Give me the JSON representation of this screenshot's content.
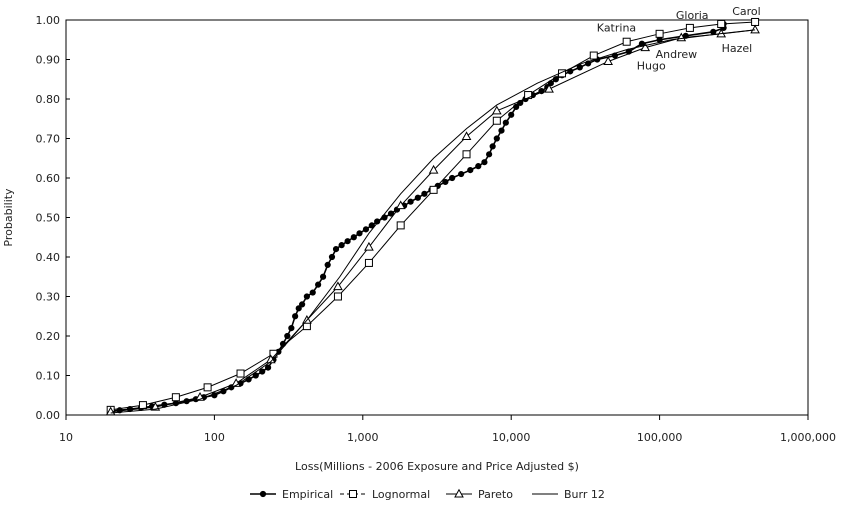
{
  "chart_data": {
    "type": "line",
    "title": "",
    "xlabel": "Loss(Millions - 2006 Exposure and Price Adjusted $)",
    "ylabel": "Probability",
    "x_scale": "log",
    "xlim": [
      10,
      1000000
    ],
    "ylim": [
      0,
      1
    ],
    "x_ticks": [
      10,
      100,
      1000,
      10000,
      100000,
      1000000
    ],
    "x_tick_labels": [
      "10",
      "100",
      "1,000",
      "10,000",
      "100,000",
      "1,000,000"
    ],
    "y_ticks": [
      0,
      0.1,
      0.2,
      0.3,
      0.4,
      0.5,
      0.6,
      0.7,
      0.8,
      0.9,
      1.0
    ],
    "y_tick_labels": [
      "0.00",
      "0.10",
      "0.20",
      "0.30",
      "0.40",
      "0.50",
      "0.60",
      "0.70",
      "0.80",
      "0.90",
      "1.00"
    ],
    "grid": false,
    "legend_position": "bottom",
    "series": [
      {
        "name": "Empirical",
        "marker": "filled-circle",
        "points": [
          [
            20,
            0.01
          ],
          [
            23,
            0.012
          ],
          [
            27,
            0.015
          ],
          [
            32,
            0.018
          ],
          [
            38,
            0.022
          ],
          [
            46,
            0.026
          ],
          [
            55,
            0.03
          ],
          [
            65,
            0.035
          ],
          [
            75,
            0.04
          ],
          [
            85,
            0.045
          ],
          [
            100,
            0.05
          ],
          [
            115,
            0.06
          ],
          [
            130,
            0.07
          ],
          [
            150,
            0.08
          ],
          [
            170,
            0.09
          ],
          [
            190,
            0.1
          ],
          [
            210,
            0.11
          ],
          [
            230,
            0.12
          ],
          [
            250,
            0.14
          ],
          [
            270,
            0.16
          ],
          [
            290,
            0.18
          ],
          [
            310,
            0.2
          ],
          [
            330,
            0.22
          ],
          [
            350,
            0.25
          ],
          [
            370,
            0.27
          ],
          [
            390,
            0.28
          ],
          [
            420,
            0.3
          ],
          [
            460,
            0.31
          ],
          [
            500,
            0.33
          ],
          [
            540,
            0.35
          ],
          [
            580,
            0.38
          ],
          [
            620,
            0.4
          ],
          [
            660,
            0.42
          ],
          [
            720,
            0.43
          ],
          [
            790,
            0.44
          ],
          [
            870,
            0.45
          ],
          [
            950,
            0.46
          ],
          [
            1050,
            0.47
          ],
          [
            1150,
            0.48
          ],
          [
            1250,
            0.49
          ],
          [
            1400,
            0.5
          ],
          [
            1550,
            0.51
          ],
          [
            1700,
            0.52
          ],
          [
            1900,
            0.53
          ],
          [
            2100,
            0.54
          ],
          [
            2350,
            0.55
          ],
          [
            2600,
            0.56
          ],
          [
            2900,
            0.57
          ],
          [
            3200,
            0.58
          ],
          [
            3600,
            0.59
          ],
          [
            4000,
            0.6
          ],
          [
            4600,
            0.61
          ],
          [
            5300,
            0.62
          ],
          [
            6000,
            0.63
          ],
          [
            6600,
            0.64
          ],
          [
            7100,
            0.66
          ],
          [
            7500,
            0.68
          ],
          [
            8000,
            0.7
          ],
          [
            8600,
            0.72
          ],
          [
            9200,
            0.74
          ],
          [
            10000,
            0.76
          ],
          [
            10800,
            0.78
          ],
          [
            11500,
            0.79
          ],
          [
            12500,
            0.8
          ],
          [
            14000,
            0.81
          ],
          [
            16000,
            0.82
          ],
          [
            17500,
            0.83
          ],
          [
            18500,
            0.84
          ],
          [
            20000,
            0.85
          ],
          [
            22000,
            0.86
          ],
          [
            25000,
            0.87
          ],
          [
            29000,
            0.88
          ],
          [
            33000,
            0.89
          ],
          [
            38000,
            0.9
          ],
          [
            50000,
            0.91
          ],
          [
            62000,
            0.92
          ],
          [
            76000,
            0.94
          ],
          [
            100000,
            0.95
          ],
          [
            150000,
            0.96
          ],
          [
            230000,
            0.97
          ],
          [
            270000,
            0.98
          ],
          [
            270000,
            0.99
          ]
        ]
      },
      {
        "name": "Lognormal",
        "marker": "open-square",
        "points": [
          [
            20,
            0.013
          ],
          [
            33,
            0.025
          ],
          [
            55,
            0.045
          ],
          [
            90,
            0.07
          ],
          [
            150,
            0.105
          ],
          [
            250,
            0.155
          ],
          [
            420,
            0.225
          ],
          [
            680,
            0.3
          ],
          [
            1100,
            0.385
          ],
          [
            1800,
            0.48
          ],
          [
            3000,
            0.57
          ],
          [
            5000,
            0.66
          ],
          [
            8000,
            0.745
          ],
          [
            13000,
            0.81
          ],
          [
            22000,
            0.865
          ],
          [
            36000,
            0.91
          ],
          [
            60000,
            0.945
          ],
          [
            100000,
            0.965
          ],
          [
            160000,
            0.98
          ],
          [
            260000,
            0.99
          ],
          [
            440000,
            0.995
          ]
        ]
      },
      {
        "name": "Pareto",
        "marker": "open-triangle",
        "points": [
          [
            20,
            0.008
          ],
          [
            40,
            0.02
          ],
          [
            80,
            0.045
          ],
          [
            140,
            0.08
          ],
          [
            240,
            0.14
          ],
          [
            420,
            0.24
          ],
          [
            680,
            0.325
          ],
          [
            1100,
            0.425
          ],
          [
            1800,
            0.53
          ],
          [
            3000,
            0.62
          ],
          [
            5000,
            0.705
          ],
          [
            8000,
            0.77
          ],
          [
            18000,
            0.825
          ],
          [
            45000,
            0.895
          ],
          [
            80000,
            0.93
          ],
          [
            140000,
            0.955
          ],
          [
            260000,
            0.965
          ],
          [
            440000,
            0.975
          ]
        ]
      },
      {
        "name": "Burr 12",
        "marker": "none",
        "points": [
          [
            20,
            0.005
          ],
          [
            40,
            0.015
          ],
          [
            80,
            0.04
          ],
          [
            140,
            0.075
          ],
          [
            240,
            0.135
          ],
          [
            420,
            0.24
          ],
          [
            700,
            0.35
          ],
          [
            1100,
            0.46
          ],
          [
            1800,
            0.56
          ],
          [
            3000,
            0.65
          ],
          [
            5000,
            0.725
          ],
          [
            8000,
            0.785
          ],
          [
            15000,
            0.84
          ],
          [
            30000,
            0.89
          ],
          [
            60000,
            0.925
          ],
          [
            120000,
            0.95
          ],
          [
            250000,
            0.965
          ],
          [
            440000,
            0.975
          ]
        ]
      }
    ],
    "annotations": [
      {
        "text": "Carol",
        "x": 290000,
        "y": 0.99
      },
      {
        "text": "Gloria",
        "x": 160000,
        "y": 0.98
      },
      {
        "text": "Katrina",
        "x": 90000,
        "y": 0.945
      },
      {
        "text": "Hazel",
        "x": 270000,
        "y": 0.965
      },
      {
        "text": "Andrew",
        "x": 100000,
        "y": 0.95
      },
      {
        "text": "Hugo",
        "x": 62000,
        "y": 0.92
      }
    ]
  }
}
